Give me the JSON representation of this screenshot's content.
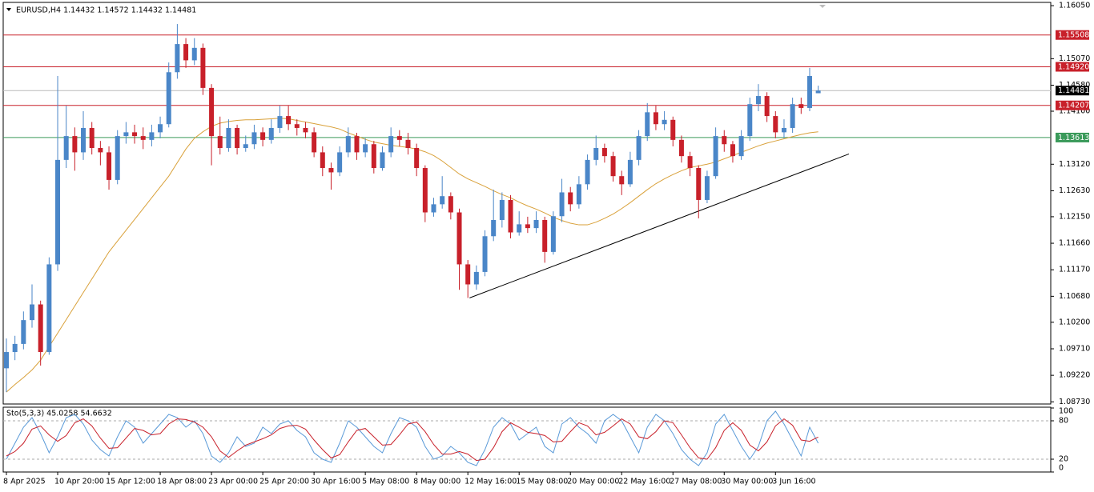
{
  "chart_data": [
    {
      "type": "candlestick",
      "title": "EURUSD,H4  1.14432 1.14572 1.14432 1.14481",
      "categories": [
        "8 Apr 2025",
        null,
        null,
        null,
        null,
        null,
        "10 Apr 20:00",
        null,
        null,
        null,
        null,
        null,
        "15 Apr 12:00",
        null,
        null,
        null,
        null,
        null,
        "18 Apr 08:00",
        null,
        null,
        null,
        null,
        null,
        "23 Apr 00:00",
        null,
        null,
        null,
        null,
        null,
        "25 Apr 20:00",
        null,
        null,
        null,
        null,
        null,
        "30 Apr 16:00",
        null,
        null,
        null,
        null,
        null,
        "5 May 08:00",
        null,
        null,
        null,
        null,
        null,
        "8 May 00:00",
        null,
        null,
        null,
        null,
        null,
        "12 May 16:00",
        null,
        null,
        null,
        null,
        null,
        "15 May 08:00",
        null,
        null,
        null,
        null,
        null,
        "20 May 00:00",
        null,
        null,
        null,
        null,
        null,
        "22 May 16:00",
        null,
        null,
        null,
        null,
        null,
        "27 May 08:00",
        null,
        null,
        null,
        null,
        null,
        "30 May 00:00",
        null,
        null,
        null,
        null,
        null,
        "3 Jun 16:00",
        null,
        null,
        null,
        null,
        null
      ],
      "open": [
        1.0935,
        1.0965,
        1.098,
        1.1024,
        1.1053,
        1.0965,
        1.1127,
        1.132,
        1.1364,
        1.1334,
        1.1379,
        1.1342,
        1.1334,
        1.1283,
        1.1364,
        1.1371,
        1.1364,
        1.1357,
        1.1371,
        1.1386,
        1.1482,
        1.1534,
        1.1504,
        1.1527,
        1.1453,
        1.1364,
        1.1342,
        1.1379,
        1.1342,
        1.1349,
        1.1371,
        1.1357,
        1.1379,
        1.1401,
        1.1386,
        1.1379,
        1.1371,
        1.1334,
        1.1305,
        1.1297,
        1.1334,
        1.1364,
        1.1334,
        1.1349,
        1.1305,
        1.1334,
        1.1364,
        1.1357,
        1.1342,
        1.1305,
        1.1223,
        1.1238,
        1.1253,
        1.1223,
        1.1127,
        1.109,
        1.1113,
        1.1179,
        1.1209,
        1.1246,
        1.1186,
        1.1201,
        1.1194,
        1.1209,
        1.115,
        1.1216,
        1.126,
        1.1238,
        1.1275,
        1.132,
        1.1342,
        1.1327,
        1.129,
        1.1275,
        1.132,
        1.1364,
        1.1408,
        1.1386,
        1.1394,
        1.1357,
        1.1327,
        1.1305,
        1.1246,
        1.129,
        1.1364,
        1.1349,
        1.1327,
        1.1364,
        1.1423,
        1.1438,
        1.1401,
        1.1371,
        1.1379,
        1.1423,
        1.1416,
        1.14432
      ],
      "high": [
        1.099,
        1.0995,
        1.104,
        1.109,
        1.106,
        1.114,
        1.1475,
        1.142,
        1.138,
        1.141,
        1.139,
        1.1355,
        1.1345,
        1.1375,
        1.139,
        1.1385,
        1.138,
        1.1385,
        1.14,
        1.15,
        1.1571,
        1.1545,
        1.1545,
        1.1535,
        1.146,
        1.14,
        1.1395,
        1.1385,
        1.1365,
        1.1385,
        1.138,
        1.1395,
        1.142,
        1.142,
        1.1395,
        1.139,
        1.138,
        1.1345,
        1.1315,
        1.1345,
        1.138,
        1.137,
        1.136,
        1.1355,
        1.1345,
        1.138,
        1.1375,
        1.137,
        1.135,
        1.131,
        1.125,
        1.129,
        1.126,
        1.123,
        1.1135,
        1.1125,
        1.119,
        1.1265,
        1.126,
        1.1255,
        1.1225,
        1.1215,
        1.1225,
        1.1215,
        1.1225,
        1.1285,
        1.127,
        1.129,
        1.133,
        1.1365,
        1.135,
        1.1335,
        1.13,
        1.1335,
        1.1375,
        1.1425,
        1.142,
        1.141,
        1.14,
        1.1365,
        1.1335,
        1.131,
        1.13,
        1.138,
        1.1375,
        1.1355,
        1.1375,
        1.1435,
        1.146,
        1.1445,
        1.141,
        1.1395,
        1.1435,
        1.1435,
        1.149,
        1.14572
      ],
      "low": [
        1.0891,
        1.095,
        1.097,
        1.101,
        1.094,
        1.096,
        1.1115,
        1.1305,
        1.13,
        1.132,
        1.133,
        1.131,
        1.1265,
        1.1275,
        1.135,
        1.135,
        1.134,
        1.1345,
        1.136,
        1.138,
        1.147,
        1.149,
        1.1495,
        1.144,
        1.131,
        1.133,
        1.1335,
        1.133,
        1.1335,
        1.134,
        1.1345,
        1.135,
        1.137,
        1.1375,
        1.1365,
        1.136,
        1.1325,
        1.129,
        1.1265,
        1.129,
        1.1325,
        1.132,
        1.1325,
        1.1295,
        1.13,
        1.1325,
        1.1345,
        1.133,
        1.129,
        1.1205,
        1.1215,
        1.123,
        1.121,
        1.108,
        1.1065,
        1.108,
        1.1105,
        1.117,
        1.1195,
        1.1175,
        1.118,
        1.1185,
        1.1185,
        1.113,
        1.1145,
        1.1205,
        1.1225,
        1.123,
        1.1265,
        1.131,
        1.1315,
        1.128,
        1.1255,
        1.127,
        1.131,
        1.1355,
        1.1375,
        1.1375,
        1.1345,
        1.1315,
        1.129,
        1.1212,
        1.124,
        1.1285,
        1.1335,
        1.1315,
        1.132,
        1.1355,
        1.141,
        1.139,
        1.136,
        1.136,
        1.137,
        1.1405,
        1.141,
        1.14432
      ],
      "close": [
        1.0965,
        1.098,
        1.1024,
        1.1053,
        1.0965,
        1.1127,
        1.132,
        1.1364,
        1.1334,
        1.1379,
        1.1342,
        1.1334,
        1.1283,
        1.1364,
        1.1371,
        1.1364,
        1.1357,
        1.1371,
        1.1386,
        1.1482,
        1.1534,
        1.1504,
        1.1527,
        1.1453,
        1.1364,
        1.1342,
        1.1379,
        1.1342,
        1.1349,
        1.1371,
        1.1357,
        1.1379,
        1.1401,
        1.1386,
        1.1379,
        1.1371,
        1.1334,
        1.1305,
        1.1297,
        1.1334,
        1.1364,
        1.1334,
        1.1349,
        1.1305,
        1.1334,
        1.1364,
        1.1357,
        1.1342,
        1.1305,
        1.1223,
        1.1238,
        1.1253,
        1.1223,
        1.1127,
        1.109,
        1.1113,
        1.1179,
        1.1209,
        1.1246,
        1.1186,
        1.1201,
        1.1194,
        1.1209,
        1.115,
        1.1216,
        1.126,
        1.1238,
        1.1275,
        1.132,
        1.1342,
        1.1327,
        1.129,
        1.1275,
        1.132,
        1.1364,
        1.1408,
        1.1386,
        1.1394,
        1.1357,
        1.1327,
        1.1305,
        1.1246,
        1.129,
        1.1364,
        1.1349,
        1.1327,
        1.1364,
        1.1423,
        1.1438,
        1.1401,
        1.1371,
        1.1379,
        1.1423,
        1.1416,
        1.1475,
        1.14481
      ],
      "up_color": "#4a86c8",
      "down_color": "#c8202a",
      "ma": {
        "color": "#d9a13a",
        "values": [
          1.0891,
          1.0905,
          1.0918,
          1.0932,
          1.095,
          1.0975,
          1.1,
          1.1025,
          1.105,
          1.1075,
          1.11,
          1.1125,
          1.115,
          1.117,
          1.119,
          1.121,
          1.123,
          1.125,
          1.127,
          1.129,
          1.1315,
          1.134,
          1.136,
          1.1372,
          1.1382,
          1.1388,
          1.1391,
          1.1393,
          1.1394,
          1.1394,
          1.1395,
          1.1396,
          1.1397,
          1.1396,
          1.1393,
          1.139,
          1.1387,
          1.1384,
          1.1381,
          1.1377,
          1.137,
          1.1364,
          1.1358,
          1.1353,
          1.135,
          1.1347,
          1.1345,
          1.1343,
          1.134,
          1.1335,
          1.1328,
          1.1318,
          1.1306,
          1.1294,
          1.1285,
          1.1278,
          1.1271,
          1.1263,
          1.1256,
          1.125,
          1.1242,
          1.1235,
          1.1229,
          1.1222,
          1.1214,
          1.1208,
          1.1203,
          1.12,
          1.12,
          1.1205,
          1.1212,
          1.122,
          1.123,
          1.1241,
          1.1253,
          1.1265,
          1.1276,
          1.1285,
          1.1293,
          1.13,
          1.1306,
          1.1309,
          1.1312,
          1.1316,
          1.1322,
          1.1328,
          1.1334,
          1.134,
          1.1346,
          1.1351,
          1.1355,
          1.1359,
          1.1363,
          1.1367,
          1.137,
          1.1372
        ]
      },
      "trendline": {
        "color": "#000000",
        "x": [
          54.2,
          98.6
        ],
        "y": [
          1.1065,
          1.1331
        ]
      },
      "levels": [
        {
          "value": 1.15508,
          "label": "1.15508",
          "color": "#c8202a"
        },
        {
          "value": 1.1492,
          "label": "1.14920",
          "color": "#c8202a"
        },
        {
          "value": 1.14207,
          "label": "1.14207",
          "color": "#c8202a"
        },
        {
          "value": 1.13613,
          "label": "1.13613",
          "color": "#3a9a5a"
        }
      ],
      "current_price": {
        "value": 1.14481,
        "label": "1.14481",
        "color": "#000000"
      },
      "ylim": [
        1.0869,
        1.1611
      ],
      "yticks": [
        {
          "value": 1.1605,
          "label": "1.16050"
        },
        {
          "value": 1.1507,
          "label": "1.15070"
        },
        {
          "value": 1.1458,
          "label": "1.14580"
        },
        {
          "value": 1.141,
          "label": "1.14100"
        },
        {
          "value": 1.1312,
          "label": "1.13120"
        },
        {
          "value": 1.1263,
          "label": "1.12630"
        },
        {
          "value": 1.1215,
          "label": "1.12150"
        },
        {
          "value": 1.1166,
          "label": "1.11660"
        },
        {
          "value": 1.1117,
          "label": "1.11170"
        },
        {
          "value": 1.1068,
          "label": "1.10680"
        },
        {
          "value": 1.102,
          "label": "1.10200"
        },
        {
          "value": 1.0971,
          "label": "1.09710"
        },
        {
          "value": 1.0922,
          "label": "1.09220"
        },
        {
          "value": 1.0873,
          "label": "1.08730"
        }
      ]
    },
    {
      "type": "line",
      "title": "Sto(5,3,3) 45.0258 54.6632",
      "ylim": [
        0,
        100
      ],
      "yticks": [
        0,
        20,
        80,
        100
      ],
      "levels": [
        20,
        80
      ],
      "series": [
        {
          "color": "#5a9ad8",
          "values": [
            20,
            45,
            70,
            85,
            60,
            30,
            55,
            85,
            90,
            75,
            50,
            35,
            25,
            55,
            80,
            70,
            45,
            60,
            75,
            90,
            85,
            70,
            80,
            60,
            25,
            15,
            30,
            55,
            40,
            45,
            70,
            60,
            75,
            80,
            65,
            55,
            30,
            20,
            15,
            45,
            80,
            70,
            55,
            40,
            30,
            60,
            85,
            80,
            70,
            40,
            20,
            25,
            40,
            30,
            15,
            10,
            35,
            70,
            85,
            75,
            50,
            60,
            70,
            40,
            30,
            75,
            85,
            70,
            60,
            45,
            80,
            90,
            80,
            55,
            30,
            70,
            90,
            80,
            60,
            35,
            20,
            10,
            30,
            75,
            90,
            65,
            40,
            20,
            40,
            80,
            95,
            75,
            50,
            25,
            70,
            45.0258
          ]
        },
        {
          "color": "#c8202a",
          "values": [
            25,
            32,
            45,
            67,
            72,
            58,
            48,
            57,
            77,
            83,
            72,
            53,
            37,
            38,
            53,
            68,
            65,
            58,
            60,
            75,
            83,
            82,
            78,
            70,
            55,
            33,
            23,
            33,
            42,
            47,
            52,
            58,
            68,
            72,
            73,
            67,
            50,
            35,
            22,
            27,
            47,
            65,
            68,
            55,
            42,
            43,
            58,
            75,
            78,
            63,
            43,
            28,
            28,
            32,
            28,
            18,
            20,
            38,
            63,
            77,
            70,
            62,
            60,
            57,
            47,
            48,
            63,
            77,
            72,
            58,
            62,
            72,
            83,
            75,
            55,
            52,
            63,
            80,
            77,
            58,
            38,
            22,
            20,
            38,
            65,
            77,
            65,
            42,
            33,
            47,
            72,
            83,
            73,
            50,
            48,
            54.6632
          ]
        }
      ]
    }
  ]
}
